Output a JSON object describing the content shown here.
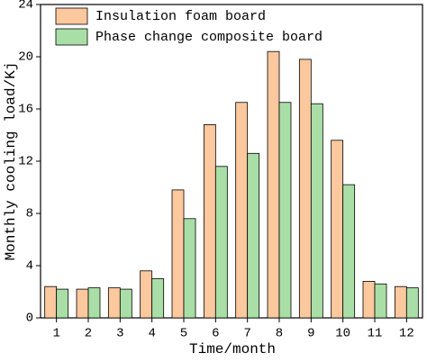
{
  "chart_data": {
    "type": "bar",
    "x_label": "Time/month",
    "y_label": "Monthly cooling load/Kj",
    "categories": [
      "1",
      "2",
      "3",
      "4",
      "5",
      "6",
      "7",
      "8",
      "9",
      "10",
      "11",
      "12"
    ],
    "series": [
      {
        "name": "Insulation foam board",
        "color": "#fcc89e",
        "values": [
          2.4,
          2.2,
          2.3,
          3.6,
          9.8,
          14.8,
          16.5,
          20.4,
          19.8,
          13.6,
          2.8,
          2.4
        ]
      },
      {
        "name": "Phase change composite board",
        "color": "#a9dfa7",
        "values": [
          2.2,
          2.3,
          2.2,
          3.0,
          7.6,
          11.6,
          12.6,
          16.5,
          16.4,
          10.2,
          2.6,
          2.3
        ]
      }
    ],
    "ylim": [
      0,
      24
    ],
    "yticks": [
      0,
      4,
      8,
      12,
      16,
      20,
      24
    ],
    "legend": "upper-left"
  }
}
